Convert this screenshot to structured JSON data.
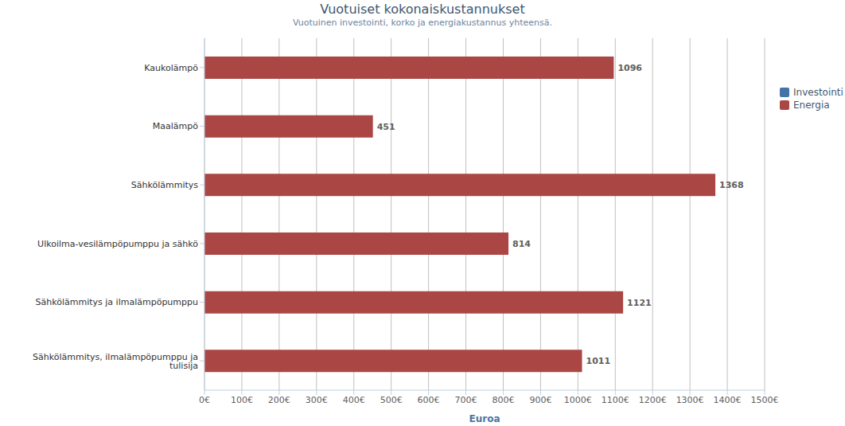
{
  "chart_data": {
    "type": "bar",
    "orientation": "horizontal",
    "title": "Vuotuiset kokonaiskustannukset",
    "subtitle": "Vuotuinen investointi, korko ja energiakustannus yhteensä.",
    "x_label": "Euroa",
    "categories": [
      "Kaukolämpö",
      "Maalämpö",
      "Sähkölämmitys",
      "Ulkoilma-vesilämpöpumppu ja sähkö",
      "Sähkölämmitys ja ilmalämpöpumppu",
      "Sähkölämmitys, ilmalämpöpumppu ja tulisija"
    ],
    "series": [
      {
        "name": "Investointi",
        "color": "#4572A7",
        "values": [
          null,
          null,
          null,
          null,
          null,
          null
        ]
      },
      {
        "name": "Energia",
        "color": "#AA4643",
        "values": [
          1096,
          451,
          1368,
          814,
          1121,
          1011
        ]
      }
    ],
    "stacked": true,
    "data_labels": true,
    "grid": true,
    "legend": "upper right",
    "xlim": [
      0,
      1500
    ],
    "xticks": [
      {
        "value": 0,
        "label": "0€"
      },
      {
        "value": 100,
        "label": "100€"
      },
      {
        "value": 200,
        "label": "200€"
      },
      {
        "value": 300,
        "label": "300€"
      },
      {
        "value": 400,
        "label": "400€"
      },
      {
        "value": 500,
        "label": "500€"
      },
      {
        "value": 600,
        "label": "600€"
      },
      {
        "value": 700,
        "label": "700€"
      },
      {
        "value": 800,
        "label": "800€"
      },
      {
        "value": 900,
        "label": "900€"
      },
      {
        "value": 1000,
        "label": "1000€"
      },
      {
        "value": 1100,
        "label": "1100€"
      },
      {
        "value": 1200,
        "label": "1200€"
      },
      {
        "value": 1300,
        "label": "1300€"
      },
      {
        "value": 1400,
        "label": "1400€"
      },
      {
        "value": 1500,
        "label": "1500€"
      }
    ]
  }
}
